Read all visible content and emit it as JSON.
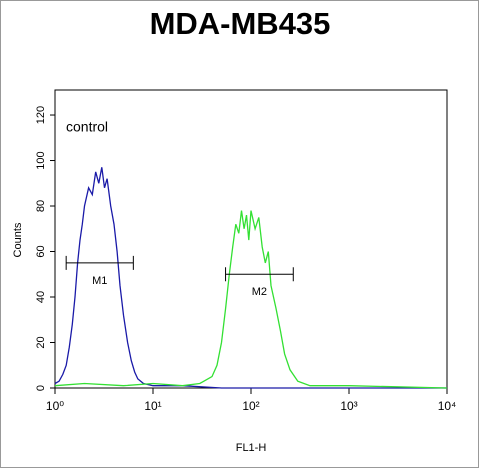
{
  "chart_data": {
    "type": "histogram-line",
    "title": "MDA-MB435",
    "x_label": "FL1-H",
    "y_label": "Counts",
    "annotation": "control",
    "log_x": true,
    "xlim": [
      1,
      10000
    ],
    "xticks": [
      {
        "value": 1,
        "label": "10⁰"
      },
      {
        "value": 10,
        "label": "10¹"
      },
      {
        "value": 100,
        "label": "10²"
      },
      {
        "value": 1000,
        "label": "10³"
      },
      {
        "value": 10000,
        "label": "10⁴"
      }
    ],
    "ylim": [
      0,
      131
    ],
    "yticks": [
      0,
      20,
      40,
      60,
      80,
      100,
      120
    ],
    "series": [
      {
        "color": "#1a1aa8",
        "x": [
          1.0,
          1.1,
          1.2,
          1.3,
          1.4,
          1.5,
          1.6,
          1.7,
          1.8,
          1.9,
          2.0,
          2.2,
          2.4,
          2.6,
          2.8,
          3.0,
          3.2,
          3.4,
          3.7,
          4.0,
          4.3,
          4.6,
          5.0,
          5.5,
          6.0,
          6.5,
          7.0,
          8.0,
          10,
          20,
          50,
          100,
          1000,
          10000
        ],
        "values": [
          2,
          3,
          6,
          10,
          18,
          28,
          40,
          55,
          65,
          72,
          80,
          88,
          85,
          95,
          90,
          97,
          88,
          92,
          80,
          72,
          60,
          45,
          32,
          20,
          12,
          7,
          4,
          2,
          1,
          1,
          0,
          0,
          0,
          0
        ]
      },
      {
        "color": "#33e033",
        "x": [
          1,
          2,
          5,
          10,
          20,
          30,
          40,
          45,
          50,
          55,
          60,
          65,
          70,
          75,
          80,
          85,
          90,
          95,
          100,
          110,
          120,
          130,
          140,
          150,
          160,
          180,
          200,
          220,
          250,
          300,
          400,
          1000,
          10000
        ],
        "values": [
          1,
          2,
          1,
          2,
          1,
          2,
          5,
          10,
          20,
          35,
          50,
          62,
          72,
          68,
          78,
          70,
          76,
          65,
          78,
          70,
          75,
          62,
          55,
          60,
          45,
          35,
          25,
          15,
          8,
          3,
          1,
          1,
          0
        ]
      }
    ],
    "markers": [
      {
        "label": "M1",
        "range": [
          1.3,
          6.3
        ],
        "y": 55
      },
      {
        "label": "M2",
        "range": [
          55,
          270
        ],
        "y": 50
      }
    ]
  }
}
